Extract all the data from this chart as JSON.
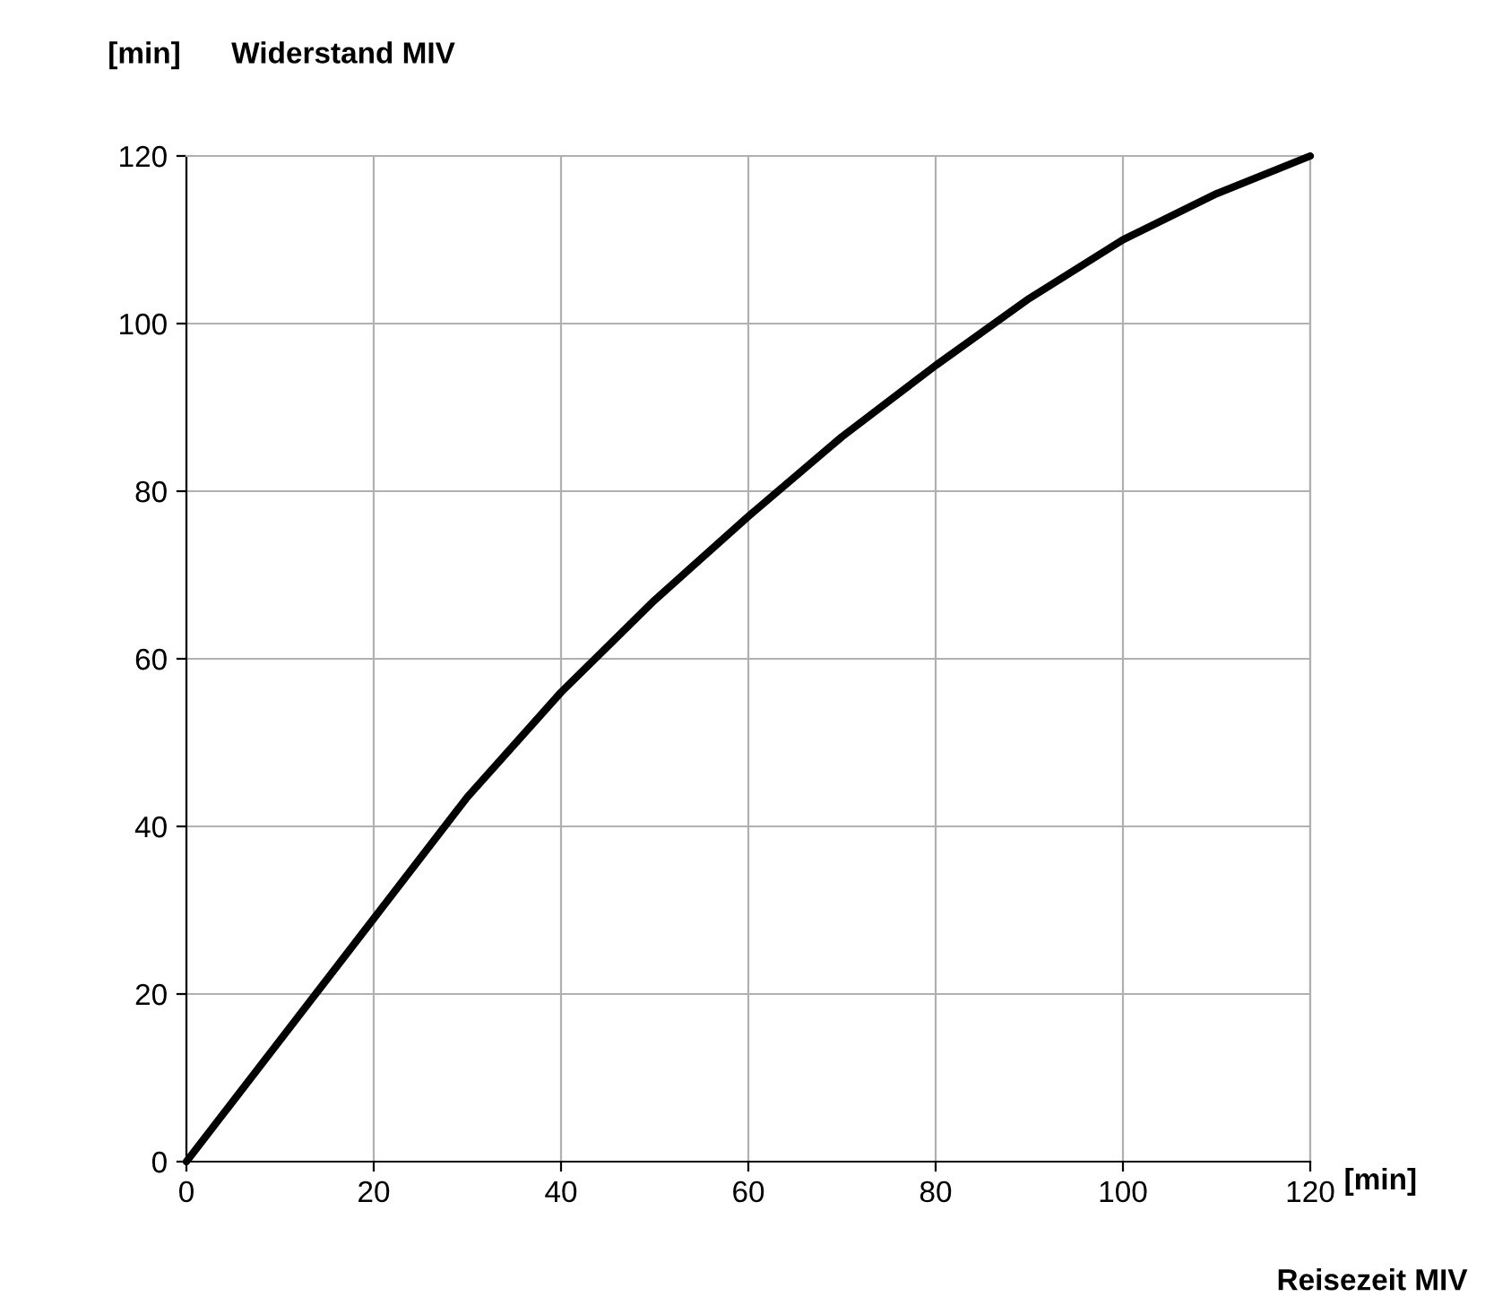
{
  "chart_data": {
    "type": "line",
    "title": "Widerstand MIV",
    "ylabel": "[min]",
    "xlabel": "Reisezeit MIV",
    "annotations": [
      "[min]"
    ],
    "x": [
      0,
      10,
      20,
      30,
      40,
      50,
      60,
      70,
      80,
      90,
      100,
      110,
      120
    ],
    "series": [
      {
        "color": "#000000",
        "values": [
          0,
          14.5,
          29,
          43.5,
          56,
          67,
          77,
          86.5,
          95,
          103,
          110,
          115.5,
          120
        ]
      }
    ],
    "xlim": [
      0,
      120
    ],
    "ylim": [
      0,
      120
    ],
    "xticks": [
      0,
      20,
      40,
      60,
      80,
      100,
      120
    ],
    "yticks": [
      0,
      20,
      40,
      60,
      80,
      100,
      120
    ],
    "grid": true,
    "marker": "none",
    "line_style": "solid"
  }
}
